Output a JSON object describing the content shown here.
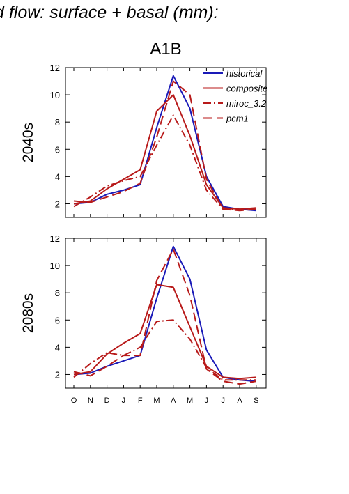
{
  "header": {
    "title": "d flow: surface + basal (mm):"
  },
  "chart_data": {
    "type": "line",
    "title": "A1B",
    "categories": [
      "O",
      "N",
      "D",
      "J",
      "F",
      "M",
      "A",
      "M",
      "J",
      "J",
      "A",
      "S"
    ],
    "ylim": [
      1,
      12
    ],
    "yticks": [
      2,
      4,
      6,
      8,
      10,
      12
    ],
    "legend": {
      "placement": "top-right",
      "entries": [
        {
          "name": "historical",
          "color": "#1a1ab8",
          "style": "solid"
        },
        {
          "name": "composite",
          "color": "#b81a1a",
          "style": "solid"
        },
        {
          "name": "miroc_3.2",
          "color": "#b81a1a",
          "style": "dashdot"
        },
        {
          "name": "pcm1",
          "color": "#b81a1a",
          "style": "dashed"
        }
      ]
    },
    "panels": [
      {
        "label": "2040s",
        "series": [
          {
            "name": "historical",
            "color": "#1a1ab8",
            "style": "solid",
            "values": [
              2.0,
              2.1,
              2.7,
              3.0,
              3.4,
              7.6,
              11.4,
              9.0,
              4.0,
              1.8,
              1.6,
              1.5
            ]
          },
          {
            "name": "composite",
            "color": "#b81a1a",
            "style": "solid",
            "values": [
              2.0,
              2.2,
              3.1,
              3.8,
              4.5,
              8.8,
              10.0,
              7.0,
              3.4,
              1.7,
              1.6,
              1.7
            ]
          },
          {
            "name": "miroc_3.2",
            "color": "#b81a1a",
            "style": "dashdot",
            "values": [
              1.8,
              2.5,
              3.3,
              3.7,
              4.0,
              6.3,
              8.5,
              6.3,
              3.0,
              1.6,
              1.6,
              1.6
            ]
          },
          {
            "name": "pcm1",
            "color": "#b81a1a",
            "style": "dashed",
            "values": [
              2.2,
              2.1,
              2.5,
              2.9,
              3.5,
              6.9,
              11.0,
              10.0,
              3.8,
              1.6,
              1.5,
              1.6
            ]
          }
        ]
      },
      {
        "label": "2080s",
        "series": [
          {
            "name": "historical",
            "color": "#1a1ab8",
            "style": "solid",
            "values": [
              2.0,
              2.1,
              2.6,
              3.0,
              3.4,
              7.6,
              11.4,
              9.0,
              3.8,
              1.8,
              1.6,
              1.5
            ]
          },
          {
            "name": "composite",
            "color": "#b81a1a",
            "style": "solid",
            "values": [
              2.0,
              2.2,
              3.5,
              4.3,
              5.0,
              8.6,
              8.4,
              5.5,
              2.6,
              1.8,
              1.7,
              1.8
            ]
          },
          {
            "name": "miroc_3.2",
            "color": "#b81a1a",
            "style": "dashdot",
            "values": [
              1.8,
              2.8,
              3.6,
              3.4,
              4.0,
              5.9,
              6.0,
              4.6,
              2.5,
              1.6,
              1.6,
              1.6
            ]
          },
          {
            "name": "pcm1",
            "color": "#b81a1a",
            "style": "dashed",
            "values": [
              2.2,
              1.9,
              2.6,
              3.4,
              3.4,
              8.9,
              11.2,
              7.8,
              2.4,
              1.5,
              1.3,
              1.5
            ]
          }
        ]
      }
    ]
  }
}
